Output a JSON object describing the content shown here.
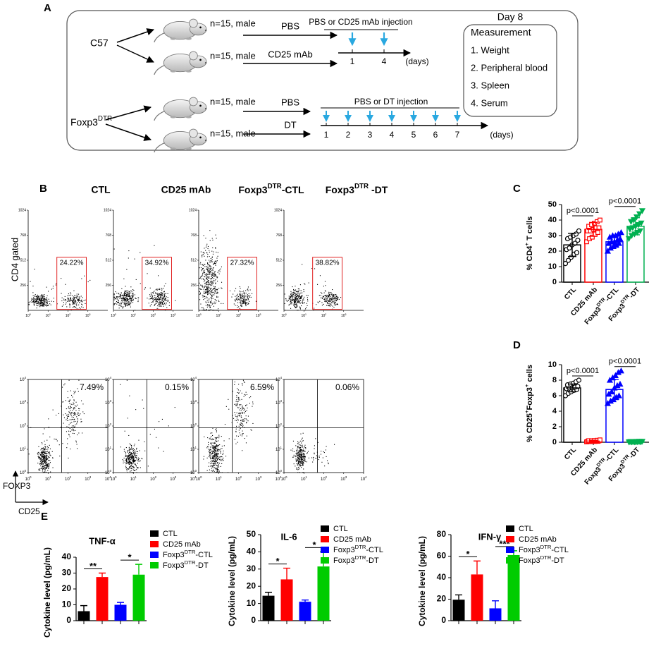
{
  "panel_a": {
    "label": "A",
    "strain1": "C57",
    "strain2": [
      "Foxp3",
      "DTR"
    ],
    "mice": [
      "n=15, male",
      "n=15, male",
      "n=15, male",
      "n=15, male"
    ],
    "treatments": [
      "PBS",
      "CD25 mAb",
      "PBS",
      "DT"
    ],
    "timeline1": {
      "title": "PBS or CD25 mAb injection",
      "days": [
        1,
        4
      ],
      "unit": "(days)"
    },
    "timeline2": {
      "title": "PBS or DT injection",
      "days": [
        1,
        2,
        3,
        4,
        5,
        6,
        7
      ],
      "unit": "(days)"
    },
    "day": "Day 8",
    "measurement": {
      "title": "Measurement",
      "items": [
        "1. Weight",
        "2. Peripheral blood",
        "3. Spleen",
        "4. Serum"
      ]
    }
  },
  "panel_b": {
    "label": "B",
    "titles": [
      "CTL",
      "CD25 mAb",
      [
        "Foxp3",
        "DTR",
        "-CTL"
      ],
      [
        "Foxp3",
        "DTR",
        " -DT"
      ]
    ],
    "row1": {
      "ylabel": "CD4 gated",
      "ylim": [
        0,
        1024
      ],
      "yticks": [
        1024,
        768,
        512,
        256
      ],
      "xticks": [
        [
          "10",
          "0"
        ],
        [
          "10",
          "1"
        ],
        [
          "10",
          "2"
        ],
        [
          "10",
          "3"
        ]
      ],
      "gates": [
        "24.22%",
        "34.92%",
        "27.32%",
        "38.82%"
      ]
    },
    "row2": {
      "yticks": [
        [
          "10",
          "4"
        ],
        [
          "10",
          "3"
        ],
        [
          "10",
          "2"
        ],
        [
          "10",
          "1"
        ],
        [
          "10",
          "0"
        ]
      ],
      "xticks": [
        [
          "10",
          "0"
        ],
        [
          "10",
          "1"
        ],
        [
          "10",
          "2"
        ],
        [
          "10",
          "3"
        ],
        [
          "10",
          "4"
        ]
      ],
      "quadrants": [
        "7.49%",
        "0.15%",
        "6.59%",
        "0.06%"
      ]
    },
    "ylabel": "FOXP3",
    "xlabel": "CD25"
  },
  "panel_c": {
    "label": "C",
    "type": "scatter_bar",
    "ylabel": [
      "% CD4",
      "+",
      " T cells"
    ],
    "categories": [
      "CTL",
      "CD25 mAb",
      [
        "Foxp3",
        "DTR",
        "-CTL"
      ],
      [
        "Foxp3",
        "DTR",
        "-DT"
      ]
    ],
    "colors": [
      "#000000",
      "#ff0000",
      "#0000ff",
      "#00b050"
    ],
    "markers": [
      "circle",
      "square",
      "triangle",
      "triangle-down"
    ],
    "filled": [
      false,
      false,
      true,
      true
    ],
    "values": [
      24,
      34,
      26,
      36
    ],
    "errors": [
      7.5,
      4.5,
      3.5,
      5.5
    ],
    "points": [
      [
        12,
        14,
        16,
        18,
        19,
        21,
        22,
        24,
        25,
        27,
        28,
        29,
        30,
        31,
        33
      ],
      [
        26,
        28,
        29,
        31,
        32,
        33,
        33,
        34,
        35,
        35,
        36,
        37,
        38,
        39,
        40
      ],
      [
        20,
        22,
        23,
        24,
        25,
        25,
        26,
        26,
        27,
        28,
        29,
        30,
        30,
        31,
        32
      ],
      [
        28,
        30,
        31,
        32,
        33,
        34,
        35,
        36,
        37,
        38,
        39,
        40,
        42,
        44,
        46
      ]
    ],
    "ylim": [
      0,
      50
    ],
    "yticks": [
      0,
      10,
      20,
      30,
      40,
      50
    ],
    "comparisons": [
      "p<0.0001",
      "p<0.0001"
    ]
  },
  "panel_d": {
    "label": "D",
    "type": "scatter_bar",
    "ylabel": [
      "% CD25",
      "+",
      "Foxp3",
      "+",
      " cells"
    ],
    "categories": [
      "CTL",
      "CD25 mAb",
      [
        "Foxp3",
        "DTR",
        "-CTL"
      ],
      [
        "Foxp3",
        "DTR",
        "-DT"
      ]
    ],
    "colors": [
      "#000000",
      "#ff0000",
      "#0000ff",
      "#00b050"
    ],
    "markers": [
      "circle",
      "square",
      "triangle",
      "triangle-down"
    ],
    "filled": [
      false,
      false,
      true,
      true
    ],
    "values": [
      7,
      0.15,
      6.8,
      0.06
    ],
    "errors": [
      0.5,
      0.1,
      1.3,
      0.03
    ],
    "points": [
      [
        6,
        6.3,
        6.5,
        6.7,
        6.8,
        6.9,
        7,
        7,
        7.1,
        7.2,
        7.4,
        7.5,
        7.6,
        7.8,
        8
      ],
      [
        0.05,
        0.08,
        0.1,
        0.1,
        0.12,
        0.13,
        0.15,
        0.15,
        0.16,
        0.18,
        0.2,
        0.2,
        0.22,
        0.25,
        0.3
      ],
      [
        5,
        5.3,
        5.5,
        5.8,
        6,
        6.2,
        6.5,
        7,
        7.3,
        7.5,
        8,
        8.3,
        8.6,
        9,
        9.2
      ],
      [
        0.02,
        0.03,
        0.04,
        0.05,
        0.05,
        0.06,
        0.06,
        0.06,
        0.07,
        0.07,
        0.08,
        0.08,
        0.09,
        0.1,
        0.1
      ]
    ],
    "ylim": [
      0,
      10
    ],
    "yticks": [
      0,
      2,
      4,
      6,
      8,
      10
    ],
    "comparisons": [
      "p<0.0001",
      "p<0.0001"
    ]
  },
  "panel_e": {
    "label": "E",
    "type": "bar",
    "ylabel": "Cytokine level (pg/mL)",
    "legend": [
      "CTL",
      "CD25 mAb",
      [
        "Foxp3",
        "DTR",
        "-CTL"
      ],
      [
        "Foxp3",
        "DTR",
        "-DT"
      ]
    ],
    "colors": [
      "#000000",
      "#ff0000",
      "#0000ff",
      "#00cc00"
    ],
    "charts": [
      {
        "title": "TNF-α",
        "values": [
          6,
          27.5,
          10,
          29
        ],
        "errors": [
          3.5,
          2.5,
          1.5,
          6.5
        ],
        "ylim": [
          0,
          40
        ],
        "yticks": [
          0,
          10,
          20,
          30,
          40
        ],
        "significance": [
          "**",
          "*"
        ]
      },
      {
        "title": "IL-6",
        "values": [
          14.5,
          24,
          11,
          31.5
        ],
        "errors": [
          2,
          6.5,
          1,
          8.5
        ],
        "ylim": [
          0,
          50
        ],
        "yticks": [
          0,
          10,
          20,
          30,
          40,
          50
        ],
        "significance": [
          "*",
          "*"
        ]
      },
      {
        "title": "IFN-γ",
        "values": [
          19.5,
          43,
          11.5,
          61
        ],
        "errors": [
          4.5,
          12.5,
          7,
          4
        ],
        "ylim": [
          0,
          80
        ],
        "yticks": [
          0,
          20,
          40,
          60,
          80
        ],
        "significance": [
          "*",
          "***"
        ]
      }
    ]
  }
}
